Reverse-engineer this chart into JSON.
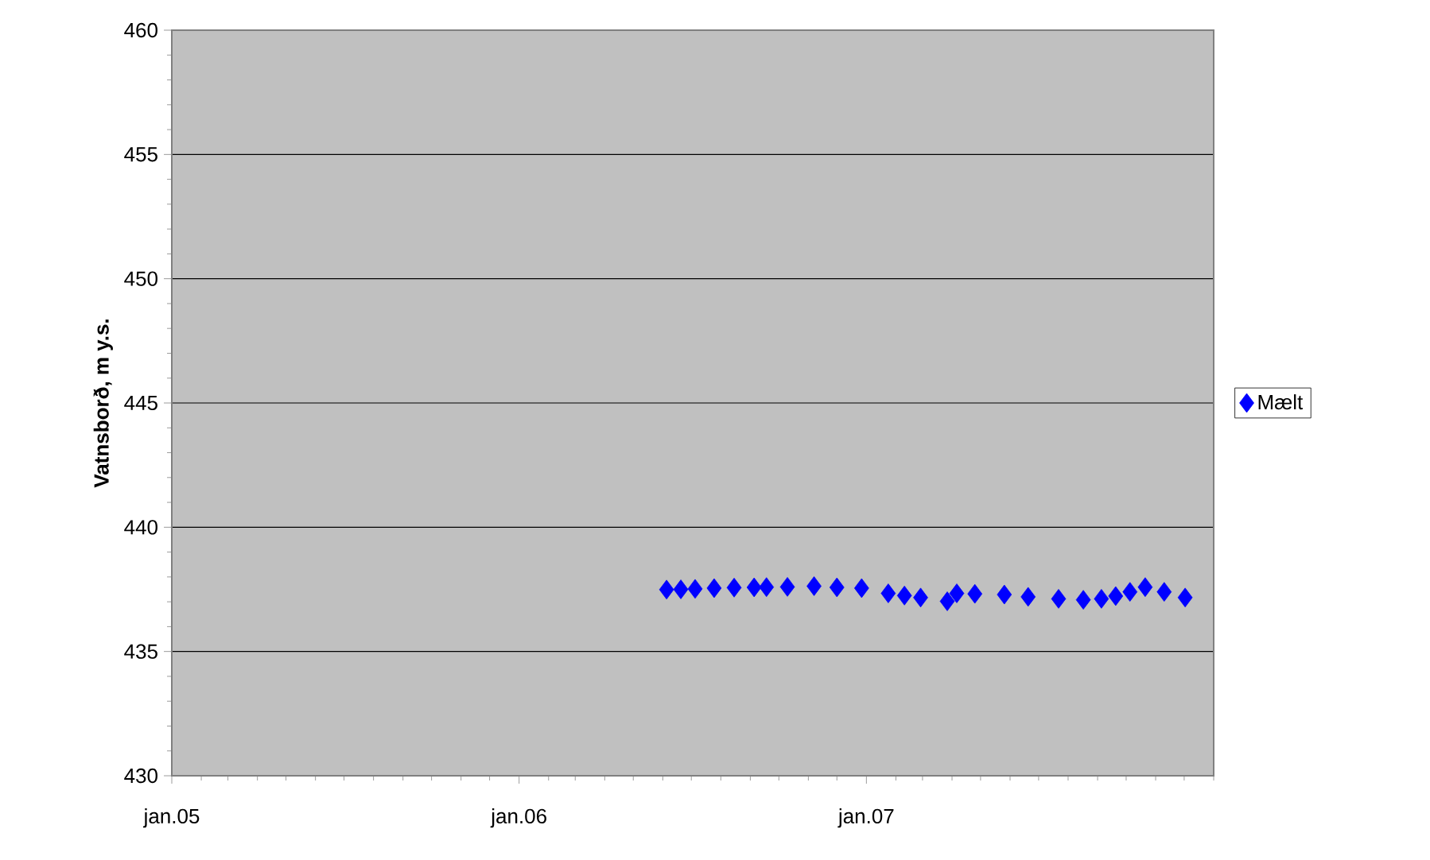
{
  "chart_data": {
    "type": "scatter",
    "ylabel": "Vatnsborð, m y.s.",
    "xlim": [
      "2005-01-01",
      "2008-01-01"
    ],
    "xticks": [
      {
        "value": "2005-01-01",
        "label": "jan.05"
      },
      {
        "value": "2006-01-01",
        "label": "jan.06"
      },
      {
        "value": "2007-01-01",
        "label": "jan.07"
      }
    ],
    "ylim": [
      430,
      460
    ],
    "yticks": [
      430,
      435,
      440,
      445,
      450,
      455,
      460
    ],
    "grid": "y",
    "legend": "right",
    "marker": "diamond",
    "x": [
      "2006-06-05",
      "2006-06-20",
      "2006-07-05",
      "2006-07-25",
      "2006-08-15",
      "2006-09-05",
      "2006-09-18",
      "2006-10-10",
      "2006-11-07",
      "2006-12-01",
      "2006-12-27",
      "2007-01-24",
      "2007-02-10",
      "2007-02-27",
      "2007-03-27",
      "2007-04-06",
      "2007-04-25",
      "2007-05-26",
      "2007-06-20",
      "2007-07-22",
      "2007-08-17",
      "2007-09-05",
      "2007-09-20",
      "2007-10-05",
      "2007-10-21",
      "2007-11-10",
      "2007-12-02"
    ],
    "series": [
      {
        "name": "Mælt",
        "color": "#0000ff",
        "values": [
          437.49,
          437.5,
          437.52,
          437.55,
          437.57,
          437.58,
          437.59,
          437.6,
          437.63,
          437.58,
          437.55,
          437.34,
          437.25,
          437.17,
          437.02,
          437.34,
          437.32,
          437.29,
          437.2,
          437.12,
          437.08,
          437.12,
          437.23,
          437.4,
          437.59,
          437.4,
          437.17
        ]
      }
    ]
  }
}
